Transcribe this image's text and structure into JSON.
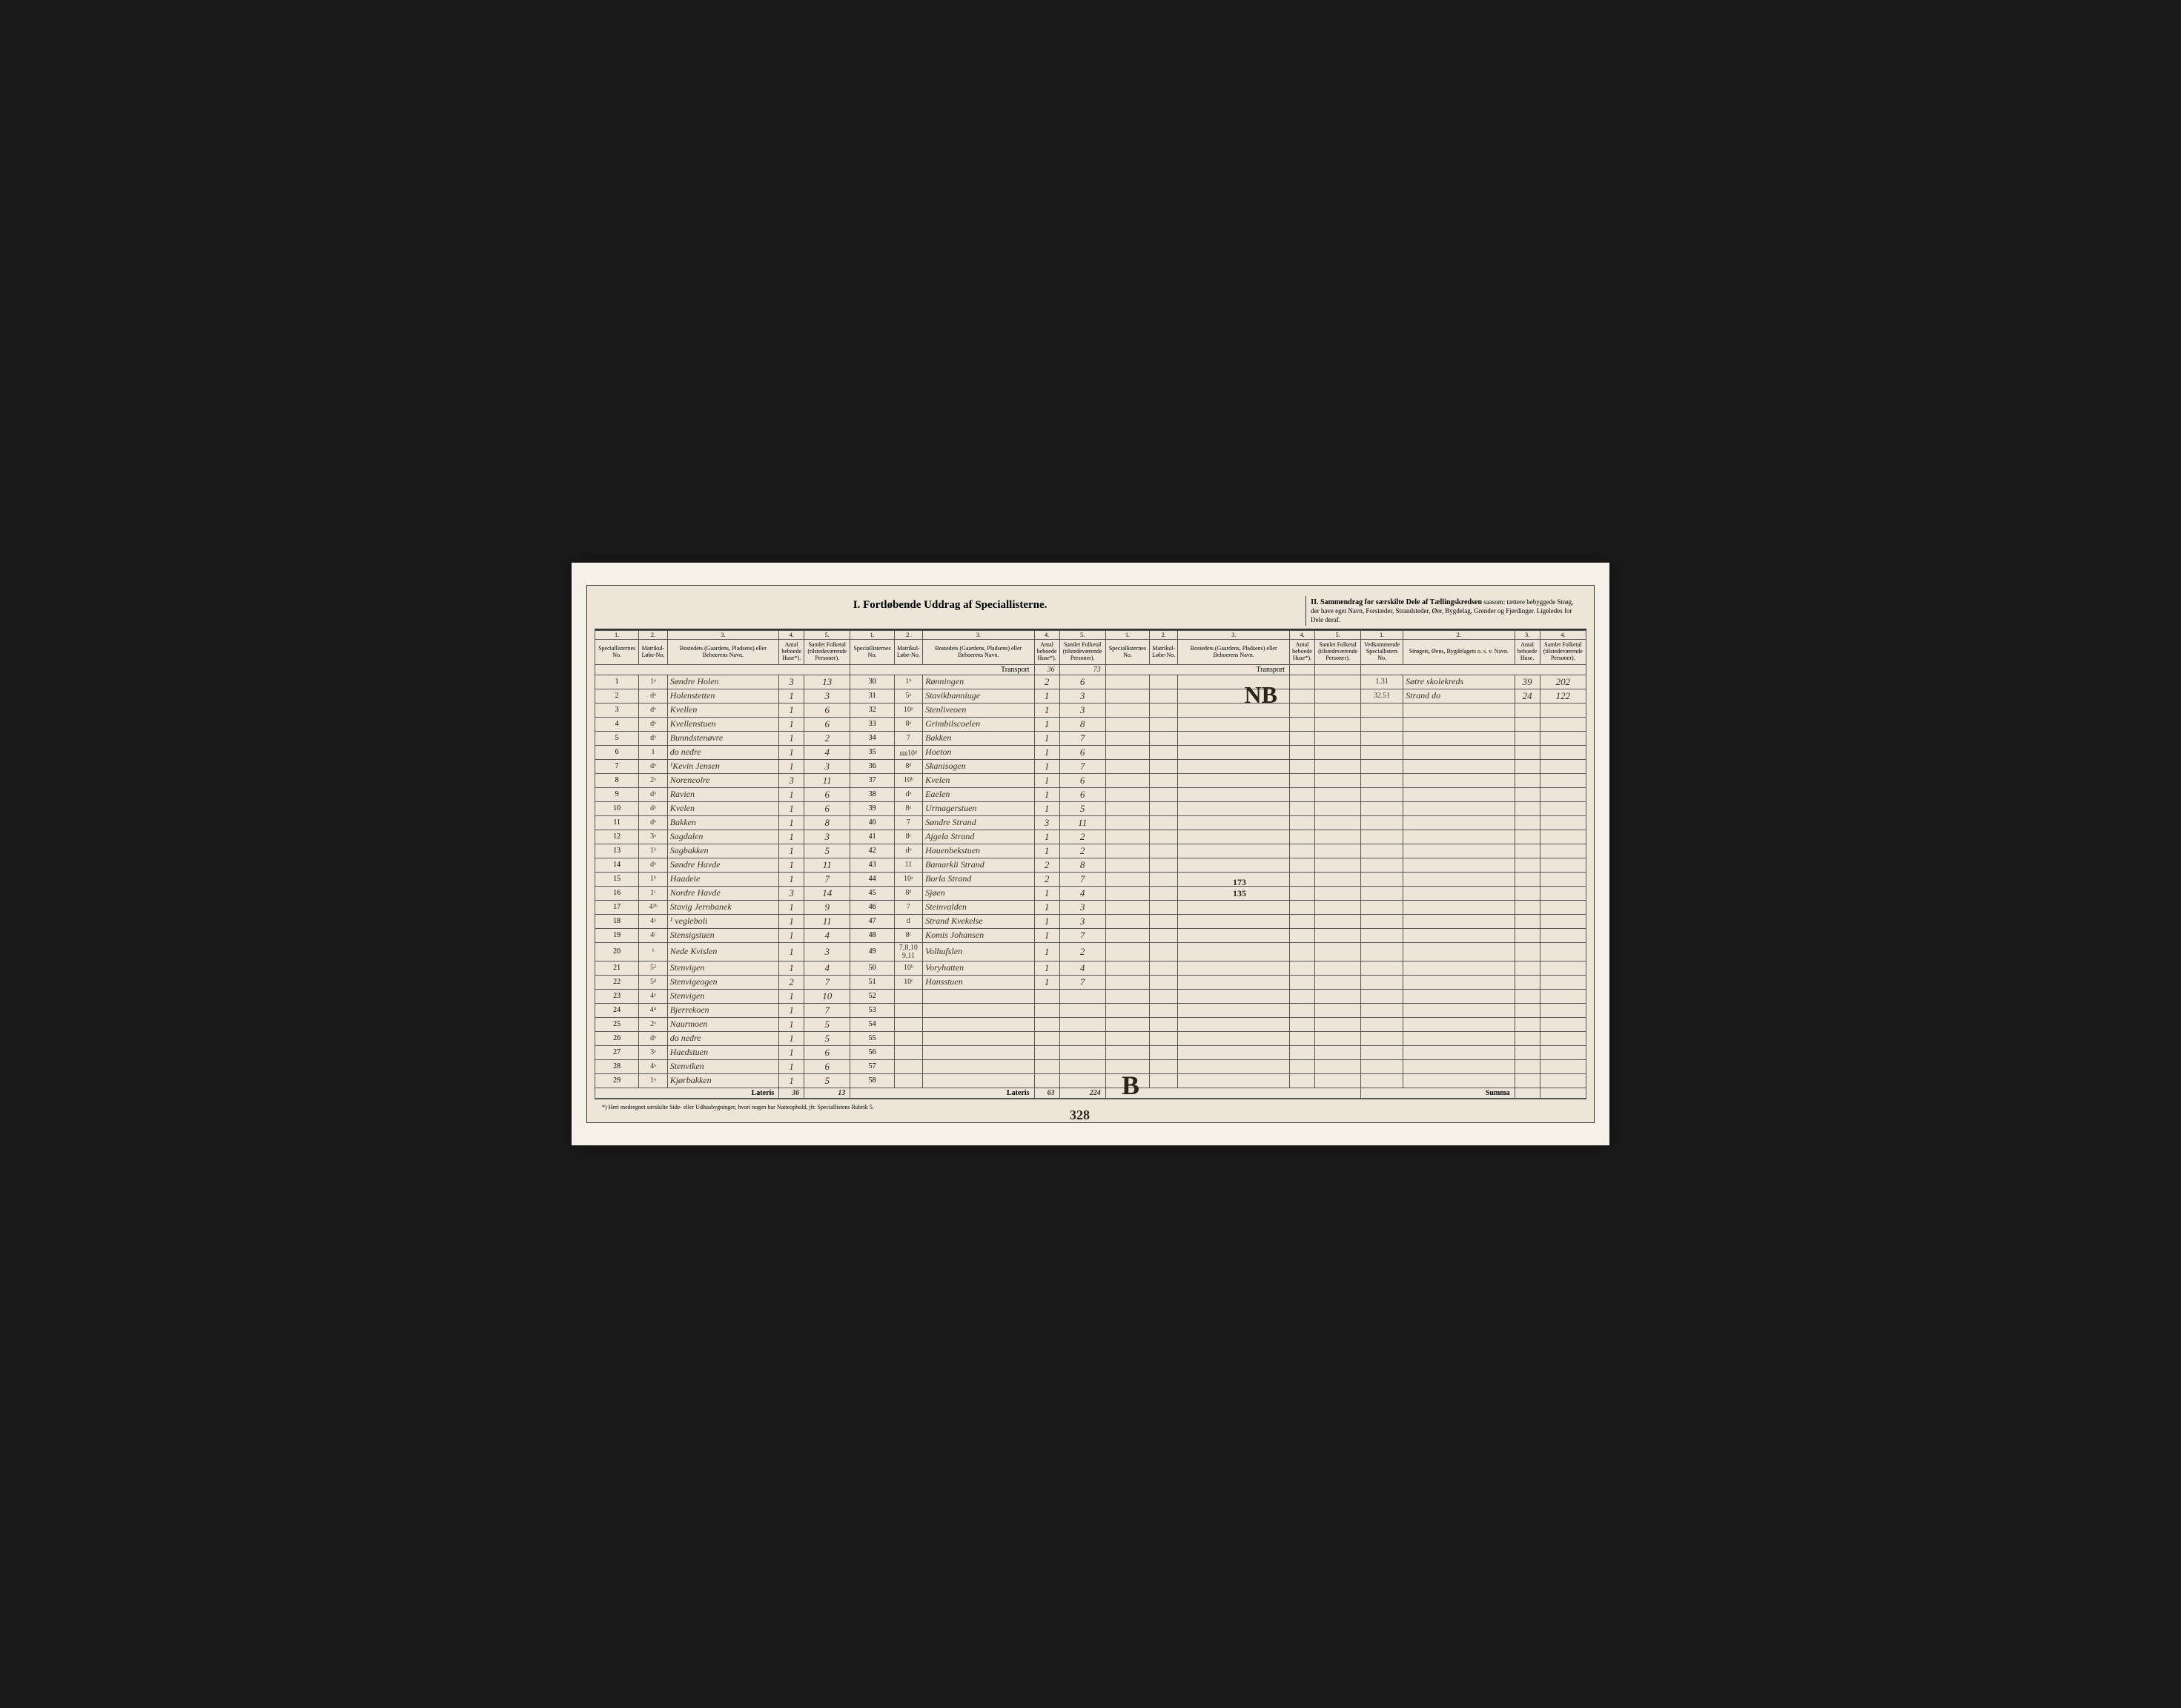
{
  "title": "I.  Fortløbende Uddrag af Speciallisterne.",
  "title_right_bold": "II. Sammendrag for særskilte Dele af Tællingskredsen",
  "title_right_text": "saasom: tættere bebyggede Strøg, der have eget Navn, Forstæder, Strandsteder, Øer, Bygdelag, Grender og Fjerdinger. Ligeledes for Dele deraf.",
  "col_numbers": [
    "1.",
    "2.",
    "3.",
    "4.",
    "5."
  ],
  "headers": {
    "spec_no": "Speciallisternes No.",
    "matrik": "Matrikul-Løbe-No.",
    "bosted": "Bostedets (Gaardens, Pladsens) eller Beboerens Navn.",
    "huse": "Antal beboede Huse*).",
    "pers": "Samlet Folketal (tilstedeværende Personer).",
    "vedk": "Vedkommende Speciallisters No.",
    "strog": "Strøgets, Øens, Bygdelagets o. s. v. Navn.",
    "antal_huse": "Antal beboede Huse.",
    "samlet_folk": "Samlet Folketal (tilstedeværende Personer)."
  },
  "transport_label": "Transport",
  "transport_vals": [
    "36",
    "73"
  ],
  "lateris_label": "Lateris",
  "lateris_left": [
    "36",
    "13"
  ],
  "lateris_mid": [
    "63",
    "224"
  ],
  "summa_label": "Summa",
  "footnote": "*) Heri medregnet særskilte Side- eller Udhusbygninger, hvori nogen har Natteophold, jfr. Speciallistens Rubrik 5.",
  "section1": [
    {
      "n": "1",
      "m": "1ᵃ",
      "name": "Søndre Holen",
      "h": "3",
      "p": "13"
    },
    {
      "n": "2",
      "m": "dᵒ",
      "name": "Holenstetten",
      "h": "1",
      "p": "3"
    },
    {
      "n": "3",
      "m": "dᵒ",
      "name": "Kvellen",
      "h": "1",
      "p": "6"
    },
    {
      "n": "4",
      "m": "dᵒ",
      "name": "Kvellenstuen",
      "h": "1",
      "p": "6"
    },
    {
      "n": "5",
      "m": "dᵒ",
      "name": "Bunndstenøvre",
      "h": "1",
      "p": "2"
    },
    {
      "n": "6",
      "m": "1",
      "name": "do nedre",
      "h": "1",
      "p": "4"
    },
    {
      "n": "7",
      "m": "dᵒ",
      "name": "¹Kevin Jensen",
      "h": "1",
      "p": "3"
    },
    {
      "n": "8",
      "m": "2ᵃ",
      "name": "Noreneolre",
      "h": "3",
      "p": "11"
    },
    {
      "n": "9",
      "m": "dᵒ",
      "name": "Ravien",
      "h": "1",
      "p": "6"
    },
    {
      "n": "10",
      "m": "dᵒ",
      "name": "Kvelen",
      "h": "1",
      "p": "6"
    },
    {
      "n": "11",
      "m": "dᵒ",
      "name": "Bakken",
      "h": "1",
      "p": "8"
    },
    {
      "n": "12",
      "m": "3ᵃ",
      "name": "Sagdalen",
      "h": "1",
      "p": "3"
    },
    {
      "n": "13",
      "m": "1ᵇ",
      "name": "Sagbakken",
      "h": "1",
      "p": "5"
    },
    {
      "n": "14",
      "m": "dᵃ",
      "name": "Søndre Havde",
      "h": "1",
      "p": "11"
    },
    {
      "n": "15",
      "m": "1ᵇ",
      "name": "Haadeie",
      "h": "1",
      "p": "7"
    },
    {
      "n": "16",
      "m": "1ᶜ",
      "name": "Nordre Havde",
      "h": "3",
      "p": "14"
    },
    {
      "n": "17",
      "m": "4²ᵇ",
      "name": "Stavig Jernbanek",
      "h": "1",
      "p": "9"
    },
    {
      "n": "18",
      "m": "4ᵃ",
      "name": "¹ vegleboli",
      "h": "1",
      "p": "11"
    },
    {
      "n": "19",
      "m": "4ᶜ",
      "name": "Stensigstuen",
      "h": "1",
      "p": "4"
    },
    {
      "n": "20",
      "m": "¹",
      "name": "Nede Kvislen",
      "h": "1",
      "p": "3"
    },
    {
      "n": "21",
      "m": "5²",
      "name": "Stenvigen",
      "h": "1",
      "p": "4"
    },
    {
      "n": "22",
      "m": "5ᵈ",
      "name": "Stenvigeogen",
      "h": "2",
      "p": "7"
    },
    {
      "n": "23",
      "m": "4ᵃ",
      "name": "Stenvigen",
      "h": "1",
      "p": "10"
    },
    {
      "n": "24",
      "m": "4⁴",
      "name": "Bjerrekoen",
      "h": "1",
      "p": "7"
    },
    {
      "n": "25",
      "m": "2ᵃ",
      "name": "Naurmoen",
      "h": "1",
      "p": "5"
    },
    {
      "n": "26",
      "m": "dᵒ",
      "name": "do nedre",
      "h": "1",
      "p": "5"
    },
    {
      "n": "27",
      "m": "3ᵃ",
      "name": "Haedstuen",
      "h": "1",
      "p": "6"
    },
    {
      "n": "28",
      "m": "4ᵃ",
      "name": "Stenviken",
      "h": "1",
      "p": "6"
    },
    {
      "n": "29",
      "m": "1ᵃ",
      "name": "Kjørbakken",
      "h": "1",
      "p": "5"
    }
  ],
  "section2": [
    {
      "n": "30",
      "m": "1ᵇ",
      "name": "Rønningen",
      "h": "2",
      "p": "6"
    },
    {
      "n": "31",
      "m": "5ᵃ",
      "name": "Stavikbanniuge",
      "h": "1",
      "p": "3"
    },
    {
      "n": "32",
      "m": "10ᵃ",
      "name": "Stenliveoen",
      "h": "1",
      "p": "3"
    },
    {
      "n": "33",
      "m": "8ᵃ",
      "name": "Grimbilscoelen",
      "h": "1",
      "p": "8"
    },
    {
      "n": "34",
      "m": "7",
      "name": "Bakken",
      "h": "1",
      "p": "7"
    },
    {
      "n": "35",
      "m": "⅏10ᵈ",
      "name": "Hoeton",
      "h": "1",
      "p": "6"
    },
    {
      "n": "36",
      "m": "8ᵈ",
      "name": "Skanisogen",
      "h": "1",
      "p": "7"
    },
    {
      "n": "37",
      "m": "10ᵇ",
      "name": "Kvelen",
      "h": "1",
      "p": "6"
    },
    {
      "n": "38",
      "m": "dᵃ",
      "name": "Eaelen",
      "h": "1",
      "p": "6"
    },
    {
      "n": "39",
      "m": "8ᵃ",
      "name": "Urmagerstuen",
      "h": "1",
      "p": "5"
    },
    {
      "n": "40",
      "m": "7",
      "name": "Søndre Strand",
      "h": "3",
      "p": "11"
    },
    {
      "n": "41",
      "m": "8ᶜ",
      "name": "Ajgela Strand",
      "h": "1",
      "p": "2"
    },
    {
      "n": "42",
      "m": "dᵒ",
      "name": "Hauenbekstuen",
      "h": "1",
      "p": "2"
    },
    {
      "n": "43",
      "m": "11",
      "name": "Bamarkli Strand",
      "h": "2",
      "p": "8"
    },
    {
      "n": "44",
      "m": "10ᵃ",
      "name": "Borla Strand",
      "h": "2",
      "p": "7"
    },
    {
      "n": "45",
      "m": "8ᵈ",
      "name": "Sjøen",
      "h": "1",
      "p": "4"
    },
    {
      "n": "46",
      "m": "7",
      "name": "Steinvalden",
      "h": "1",
      "p": "3"
    },
    {
      "n": "47",
      "m": "d",
      "name": "Strand Kvekelse",
      "h": "1",
      "p": "3"
    },
    {
      "n": "48",
      "m": "8ᶜ",
      "name": "Komis Johansen",
      "h": "1",
      "p": "7"
    },
    {
      "n": "49",
      "m": "7,8,10 9,11",
      "name": "Volhufslen",
      "h": "1",
      "p": "2"
    },
    {
      "n": "50",
      "m": "10ᵇ",
      "name": "Voryhatten",
      "h": "1",
      "p": "4"
    },
    {
      "n": "51",
      "m": "10ᶜ",
      "name": "Hansstuen",
      "h": "1",
      "p": "7"
    },
    {
      "n": "52",
      "m": "",
      "name": "",
      "h": "",
      "p": ""
    },
    {
      "n": "53",
      "m": "",
      "name": "",
      "h": "",
      "p": ""
    },
    {
      "n": "54",
      "m": "",
      "name": "",
      "h": "",
      "p": ""
    },
    {
      "n": "55",
      "m": "",
      "name": "",
      "h": "",
      "p": ""
    },
    {
      "n": "56",
      "m": "",
      "name": "",
      "h": "",
      "p": ""
    },
    {
      "n": "57",
      "m": "",
      "name": "",
      "h": "",
      "p": ""
    },
    {
      "n": "58",
      "m": "",
      "name": "",
      "h": "",
      "p": ""
    }
  ],
  "section3_empty_rows": 29,
  "summary_rows": [
    {
      "v": "1.31",
      "s": "Søtre skolekreds",
      "h": "39",
      "p": "202"
    },
    {
      "v": "32.51",
      "s": "Strand do",
      "h": "24",
      "p": "122"
    }
  ],
  "annotations": {
    "page_num": "328",
    "mark_b": "B",
    "mark_nb": "NB",
    "mid_note1": "173",
    "mid_note2": "135"
  },
  "colors": {
    "page_bg": "#ede6d8",
    "ink": "#3a3020",
    "line": "#555555"
  }
}
